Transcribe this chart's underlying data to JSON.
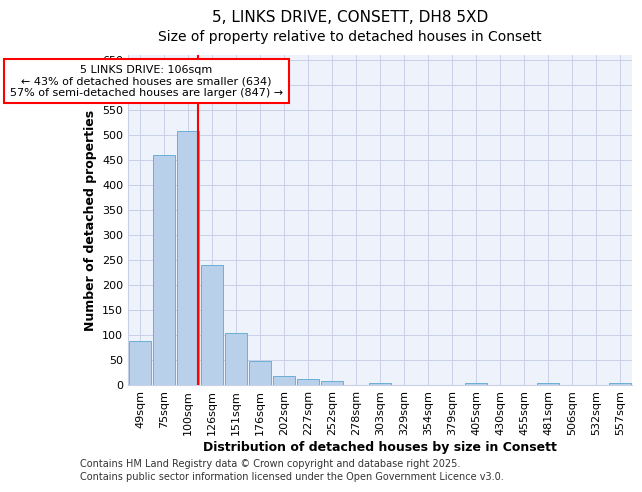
{
  "title1": "5, LINKS DRIVE, CONSETT, DH8 5XD",
  "title2": "Size of property relative to detached houses in Consett",
  "xlabel": "Distribution of detached houses by size in Consett",
  "ylabel": "Number of detached properties",
  "categories": [
    "49sqm",
    "75sqm",
    "100sqm",
    "126sqm",
    "151sqm",
    "176sqm",
    "202sqm",
    "227sqm",
    "252sqm",
    "278sqm",
    "303sqm",
    "329sqm",
    "354sqm",
    "379sqm",
    "405sqm",
    "430sqm",
    "455sqm",
    "481sqm",
    "506sqm",
    "532sqm",
    "557sqm"
  ],
  "values": [
    88,
    459,
    507,
    239,
    104,
    48,
    17,
    12,
    8,
    0,
    3,
    0,
    0,
    0,
    3,
    0,
    0,
    3,
    0,
    0,
    3
  ],
  "bar_color": "#b8d0ea",
  "bar_edge_color": "#6aaed6",
  "annotation_title": "5 LINKS DRIVE: 106sqm",
  "annotation_line1": "← 43% of detached houses are smaller (634)",
  "annotation_line2": "57% of semi-detached houses are larger (847) →",
  "ylim": [
    0,
    660
  ],
  "yticks": [
    0,
    50,
    100,
    150,
    200,
    250,
    300,
    350,
    400,
    450,
    500,
    550,
    600,
    650
  ],
  "footnote1": "Contains HM Land Registry data © Crown copyright and database right 2025.",
  "footnote2": "Contains public sector information licensed under the Open Government Licence v3.0.",
  "bg_color": "#ffffff",
  "plot_bg_color": "#eef2fa",
  "grid_color": "#c8d0e8",
  "title_fontsize": 11,
  "subtitle_fontsize": 10,
  "axis_label_fontsize": 9,
  "tick_fontsize": 8,
  "footnote_fontsize": 7
}
